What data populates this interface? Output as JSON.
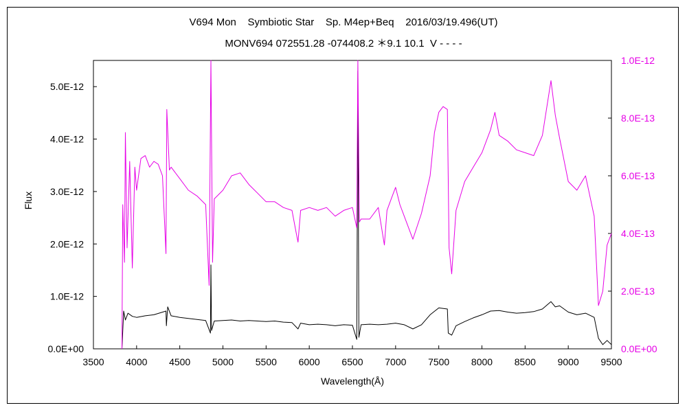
{
  "chart_data": {
    "type": "line",
    "title": "V694 Mon    Symbiotic Star    Sp. M4ep+Beq    2016/03/19.496(UT)",
    "subtitle": "MONV694 072551.28 -074408.2 ＊9.1 10.1  V - - - -",
    "xlabel": "Wavelength(Å)",
    "ylabel": "Flux",
    "xlim": [
      3500,
      9500
    ],
    "ylim_left": [
      0,
      5.5e-12
    ],
    "ylim_right": [
      0,
      1e-12
    ],
    "x_ticks": [
      "3500",
      "4000",
      "4500",
      "5000",
      "5500",
      "6000",
      "6500",
      "7000",
      "7500",
      "8000",
      "8500",
      "9000",
      "9500"
    ],
    "y_left_ticks": [
      "0.0E+00",
      "1.0E-12",
      "2.0E-12",
      "3.0E-12",
      "4.0E-12",
      "5.0E-12"
    ],
    "y_right_ticks": [
      "0.0E+00",
      "2.0E-13",
      "4.0E-13",
      "6.0E-13",
      "8.0E-13",
      "1.0E-12"
    ],
    "grid": false,
    "series": [
      {
        "color": "#000000",
        "axis": "left",
        "points": [
          [
            3830,
            0.0
          ],
          [
            3850,
            7.2e-13
          ],
          [
            3870,
            5.5e-13
          ],
          [
            3900,
            6.8e-13
          ],
          [
            3950,
            6.2e-13
          ],
          [
            4000,
            6e-13
          ],
          [
            4100,
            6.3e-13
          ],
          [
            4200,
            6.5e-13
          ],
          [
            4340,
            7.2e-13
          ],
          [
            4345,
            4.4e-13
          ],
          [
            4360,
            8e-13
          ],
          [
            4400,
            6.3e-13
          ],
          [
            4500,
            6e-13
          ],
          [
            4600,
            5.8e-13
          ],
          [
            4700,
            5.6e-13
          ],
          [
            4800,
            5.4e-13
          ],
          [
            4855,
            3e-13
          ],
          [
            4861,
            1.6e-12
          ],
          [
            4868,
            3.5e-13
          ],
          [
            4900,
            5.3e-13
          ],
          [
            5000,
            5.4e-13
          ],
          [
            5100,
            5.5e-13
          ],
          [
            5200,
            5.3e-13
          ],
          [
            5300,
            5.4e-13
          ],
          [
            5400,
            5.3e-13
          ],
          [
            5500,
            5.2e-13
          ],
          [
            5600,
            5.3e-13
          ],
          [
            5700,
            5.1e-13
          ],
          [
            5800,
            5e-13
          ],
          [
            5870,
            3.8e-13
          ],
          [
            5900,
            4.9e-13
          ],
          [
            6000,
            4.6e-13
          ],
          [
            6100,
            4.7e-13
          ],
          [
            6200,
            4.6e-13
          ],
          [
            6300,
            4.4e-13
          ],
          [
            6400,
            4.6e-13
          ],
          [
            6500,
            4.5e-13
          ],
          [
            6550,
            1.8e-13
          ],
          [
            6563,
            5.3e-12
          ],
          [
            6575,
            2.2e-13
          ],
          [
            6600,
            4.6e-13
          ],
          [
            6700,
            4.7e-13
          ],
          [
            6800,
            4.6e-13
          ],
          [
            6900,
            4.7e-13
          ],
          [
            7000,
            4.9e-13
          ],
          [
            7100,
            4.6e-13
          ],
          [
            7200,
            3.8e-13
          ],
          [
            7300,
            4.6e-13
          ],
          [
            7400,
            6.5e-13
          ],
          [
            7500,
            7.8e-13
          ],
          [
            7600,
            7.6e-13
          ],
          [
            7610,
            3e-13
          ],
          [
            7650,
            2.6e-13
          ],
          [
            7700,
            4.4e-13
          ],
          [
            7800,
            5.2e-13
          ],
          [
            7900,
            5.9e-13
          ],
          [
            8000,
            6.5e-13
          ],
          [
            8100,
            7.2e-13
          ],
          [
            8200,
            7.3e-13
          ],
          [
            8300,
            7e-13
          ],
          [
            8400,
            6.8e-13
          ],
          [
            8500,
            6.9e-13
          ],
          [
            8600,
            7.1e-13
          ],
          [
            8700,
            7.6e-13
          ],
          [
            8800,
            9e-13
          ],
          [
            8850,
            8e-13
          ],
          [
            8900,
            8.2e-13
          ],
          [
            9000,
            7e-13
          ],
          [
            9100,
            6.5e-13
          ],
          [
            9200,
            6.8e-13
          ],
          [
            9300,
            6e-13
          ],
          [
            9350,
            2e-13
          ],
          [
            9400,
            8e-14
          ],
          [
            9450,
            1.6e-13
          ],
          [
            9500,
            8e-14
          ]
        ]
      },
      {
        "color": "#e600e6",
        "axis": "right",
        "points": [
          [
            3830,
            0.0
          ],
          [
            3840,
            5e-13
          ],
          [
            3860,
            3e-13
          ],
          [
            3870,
            7.5e-13
          ],
          [
            3890,
            3.5e-13
          ],
          [
            3920,
            6.5e-13
          ],
          [
            3950,
            2.8e-13
          ],
          [
            3980,
            6.3e-13
          ],
          [
            4000,
            5.5e-13
          ],
          [
            4050,
            6.6e-13
          ],
          [
            4100,
            6.7e-13
          ],
          [
            4150,
            6.3e-13
          ],
          [
            4200,
            6.5e-13
          ],
          [
            4250,
            6.4e-13
          ],
          [
            4300,
            6e-13
          ],
          [
            4340,
            3.3e-13
          ],
          [
            4350,
            8.3e-13
          ],
          [
            4380,
            6.2e-13
          ],
          [
            4400,
            6.3e-13
          ],
          [
            4500,
            5.9e-13
          ],
          [
            4600,
            5.5e-13
          ],
          [
            4700,
            5.3e-13
          ],
          [
            4800,
            5e-13
          ],
          [
            4840,
            2.2e-13
          ],
          [
            4861,
            1e-12
          ],
          [
            4880,
            3e-13
          ],
          [
            4900,
            5.2e-13
          ],
          [
            5000,
            5.5e-13
          ],
          [
            5100,
            6e-13
          ],
          [
            5200,
            6.1e-13
          ],
          [
            5300,
            5.7e-13
          ],
          [
            5400,
            5.4e-13
          ],
          [
            5500,
            5.1e-13
          ],
          [
            5600,
            5.1e-13
          ],
          [
            5700,
            4.9e-13
          ],
          [
            5800,
            4.8e-13
          ],
          [
            5850,
            4e-13
          ],
          [
            5870,
            3.7e-13
          ],
          [
            5900,
            4.8e-13
          ],
          [
            6000,
            4.9e-13
          ],
          [
            6100,
            4.8e-13
          ],
          [
            6200,
            4.9e-13
          ],
          [
            6300,
            4.6e-13
          ],
          [
            6400,
            4.8e-13
          ],
          [
            6500,
            4.9e-13
          ],
          [
            6550,
            4.2e-13
          ],
          [
            6563,
            1e-12
          ],
          [
            6580,
            4.4e-13
          ],
          [
            6600,
            4.5e-13
          ],
          [
            6700,
            4.5e-13
          ],
          [
            6800,
            4.9e-13
          ],
          [
            6870,
            3.6e-13
          ],
          [
            6900,
            4.8e-13
          ],
          [
            6950,
            5.2e-13
          ],
          [
            7000,
            5.6e-13
          ],
          [
            7050,
            5e-13
          ],
          [
            7100,
            4.6e-13
          ],
          [
            7200,
            3.8e-13
          ],
          [
            7300,
            4.7e-13
          ],
          [
            7400,
            6e-13
          ],
          [
            7450,
            7.5e-13
          ],
          [
            7500,
            8.2e-13
          ],
          [
            7550,
            8.4e-13
          ],
          [
            7600,
            8.3e-13
          ],
          [
            7620,
            3.5e-13
          ],
          [
            7650,
            2.6e-13
          ],
          [
            7700,
            4.8e-13
          ],
          [
            7800,
            5.8e-13
          ],
          [
            7900,
            6.3e-13
          ],
          [
            8000,
            6.8e-13
          ],
          [
            8100,
            7.6e-13
          ],
          [
            8150,
            8.2e-13
          ],
          [
            8200,
            7.4e-13
          ],
          [
            8300,
            7.2e-13
          ],
          [
            8400,
            6.9e-13
          ],
          [
            8500,
            6.8e-13
          ],
          [
            8600,
            6.7e-13
          ],
          [
            8700,
            7.4e-13
          ],
          [
            8800,
            9.3e-13
          ],
          [
            8850,
            8.1e-13
          ],
          [
            8900,
            7.3e-13
          ],
          [
            9000,
            5.8e-13
          ],
          [
            9100,
            5.5e-13
          ],
          [
            9200,
            6e-13
          ],
          [
            9300,
            4.6e-13
          ],
          [
            9350,
            1.5e-13
          ],
          [
            9400,
            2e-13
          ],
          [
            9450,
            3.6e-13
          ],
          [
            9500,
            4e-13
          ]
        ]
      }
    ]
  },
  "colors": {
    "left_axis": "#000000",
    "right_axis": "#e600e6"
  }
}
